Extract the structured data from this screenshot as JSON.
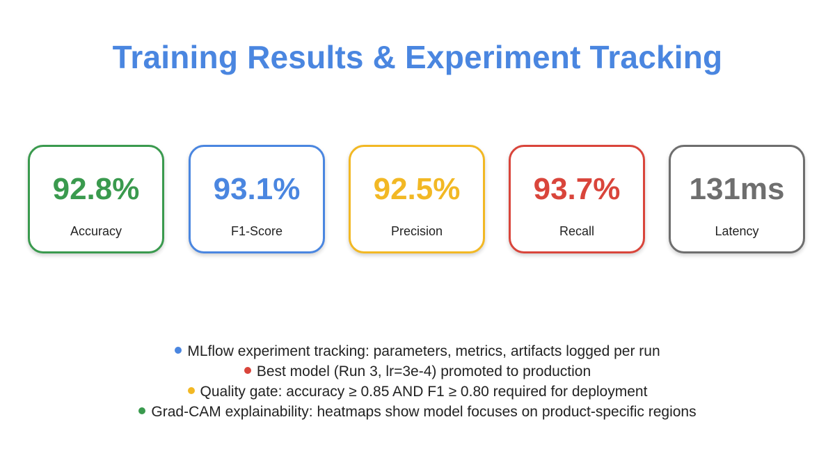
{
  "title": "Training Results & Experiment Tracking",
  "metrics": [
    {
      "value": "92.8%",
      "label": "Accuracy",
      "color": "#3a9a4e"
    },
    {
      "value": "93.1%",
      "label": "F1-Score",
      "color": "#4a86e0"
    },
    {
      "value": "92.5%",
      "label": "Precision",
      "color": "#f2b824"
    },
    {
      "value": "93.7%",
      "label": "Recall",
      "color": "#d9453b"
    },
    {
      "value": "131ms",
      "label": "Latency",
      "color": "#6e6e6e"
    }
  ],
  "bullets": [
    {
      "text": "MLflow experiment tracking: parameters, metrics, artifacts logged per run",
      "color": "#4a86e0"
    },
    {
      "text": "Best model (Run 3, lr=3e-4) promoted to production",
      "color": "#d9453b"
    },
    {
      "text": "Quality gate: accuracy ≥ 0.85 AND F1 ≥ 0.80 required for deployment",
      "color": "#f2b824"
    },
    {
      "text": "Grad-CAM explainability: heatmaps show model focuses on product-specific regions",
      "color": "#3a9a4e"
    }
  ]
}
